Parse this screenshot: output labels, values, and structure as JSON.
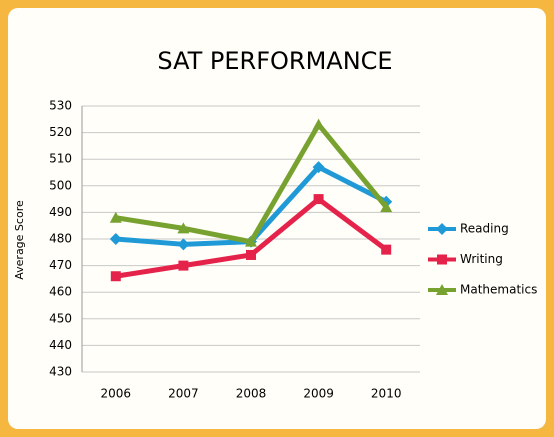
{
  "chart_data": {
    "type": "line",
    "title": "SAT PERFORMANCE",
    "ylabel": "Average Score",
    "categories": [
      "2006",
      "2007",
      "2008",
      "2009",
      "2010"
    ],
    "series": [
      {
        "name": "Reading",
        "color": "#1f9ad6",
        "marker": "diamond",
        "values": [
          480,
          478,
          479,
          507,
          494
        ]
      },
      {
        "name": "Writing",
        "color": "#e5234a",
        "marker": "square",
        "values": [
          466,
          470,
          474,
          495,
          476
        ]
      },
      {
        "name": "Mathematics",
        "color": "#78a22f",
        "marker": "triangle",
        "values": [
          488,
          484,
          479,
          523,
          492
        ]
      }
    ],
    "ylim": [
      430,
      530
    ],
    "yticks": [
      430,
      440,
      450,
      460,
      470,
      480,
      490,
      500,
      510,
      520,
      530
    ],
    "grid": true,
    "legend": "right"
  }
}
